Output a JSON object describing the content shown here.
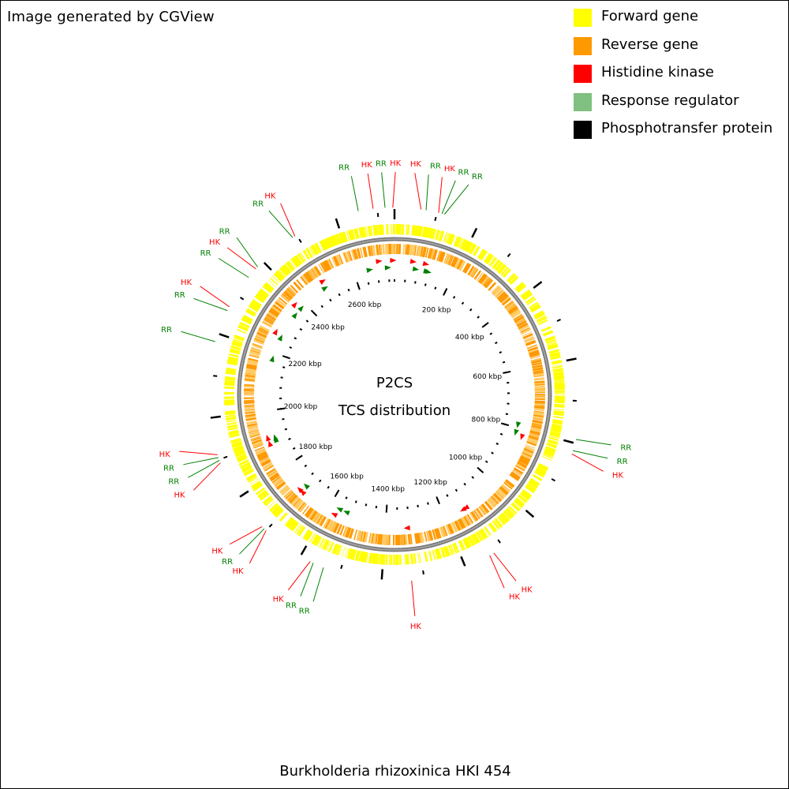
{
  "header": {
    "generated_by": "Image generated by CGView"
  },
  "legend": [
    {
      "label": "Forward gene",
      "color": "#ffff00"
    },
    {
      "label": "Reverse gene",
      "color": "#ff9900"
    },
    {
      "label": "Histidine kinase",
      "color": "#ff0000"
    },
    {
      "label": "Response regulator",
      "color": "#80c080"
    },
    {
      "label": "Phosphotransfer protein",
      "color": "#000000"
    }
  ],
  "map": {
    "title": "P2CS",
    "subtitle": "TCS distribution",
    "genome_length_kbp": 2740,
    "tick_labels": [
      "200 kbp",
      "400 kbp",
      "600 kbp",
      "800 kbp",
      "1000 kbp",
      "1200 kbp",
      "1400 kbp",
      "1600 kbp",
      "1800 kbp",
      "2000 kbp",
      "2200 kbp",
      "2400 kbp",
      "2600 kbp"
    ],
    "tick_positions_kbp": [
      200,
      400,
      600,
      800,
      1000,
      1200,
      1400,
      1600,
      1800,
      2000,
      2200,
      2400,
      2600
    ],
    "label_colors": {
      "HK": "#ff0000",
      "RR": "#008000"
    },
    "features": [
      {
        "label": "RR",
        "kbp": 2655
      },
      {
        "label": "HK",
        "kbp": 2690
      },
      {
        "label": "RR",
        "kbp": 2718
      },
      {
        "label": "HK",
        "kbp": 2736
      },
      {
        "label": "HK",
        "kbp": 62
      },
      {
        "label": "RR",
        "kbp": 74
      },
      {
        "label": "HK",
        "kbp": 104
      },
      {
        "label": "RR",
        "kbp": 112
      },
      {
        "label": "RR",
        "kbp": 118
      },
      {
        "label": "RR",
        "kbp": 2489
      },
      {
        "label": "HK",
        "kbp": 2495
      },
      {
        "label": "RR",
        "kbp": 2382
      },
      {
        "label": "HK",
        "kbp": 2376
      },
      {
        "label": "RR",
        "kbp": 2350
      },
      {
        "label": "HK",
        "kbp": 2268
      },
      {
        "label": "RR",
        "kbp": 2258
      },
      {
        "label": "RR",
        "kbp": 2180
      },
      {
        "label": "RR",
        "kbp": 791
      },
      {
        "label": "RR",
        "kbp": 818
      },
      {
        "label": "HK",
        "kbp": 826
      },
      {
        "label": "HK",
        "kbp": 1912
      },
      {
        "label": "RR",
        "kbp": 1905
      },
      {
        "label": "RR",
        "kbp": 1898
      },
      {
        "label": "HK",
        "kbp": 1892
      },
      {
        "label": "HK",
        "kbp": 1713
      },
      {
        "label": "RR",
        "kbp": 1706
      },
      {
        "label": "HK",
        "kbp": 1700
      },
      {
        "label": "HK",
        "kbp": 1574
      },
      {
        "label": "RR",
        "kbp": 1566
      },
      {
        "label": "RR",
        "kbp": 1540
      },
      {
        "label": "HK",
        "kbp": 1330
      },
      {
        "label": "HK",
        "kbp": 1137
      },
      {
        "label": "HK",
        "kbp": 1126
      }
    ]
  },
  "caption": "Burkholderia rhizoxinica HKI 454"
}
